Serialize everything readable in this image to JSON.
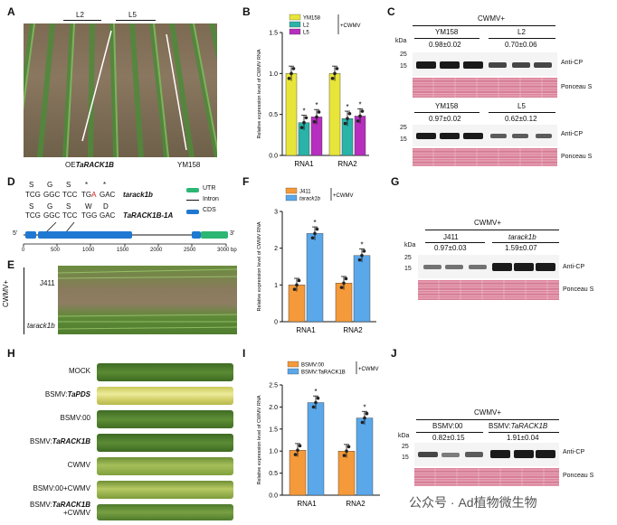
{
  "panels": {
    "A": {
      "letter": "A",
      "labels_top": [
        "L2",
        "L5"
      ],
      "label_left_pre": "OE",
      "label_left_gene": "TaRACK1B",
      "label_right": "YM158"
    },
    "B": {
      "letter": "B",
      "legend": [
        "YM158",
        "L2",
        "L5"
      ],
      "legend_suffix": "CWMV",
      "ylabel": "Relative expression level of CWMV RNA",
      "chart_data": {
        "type": "bar",
        "categories": [
          "RNA1",
          "RNA2"
        ],
        "series": [
          {
            "name": "YM158",
            "values": [
              1.0,
              1.0
            ],
            "color": "#e8e53a"
          },
          {
            "name": "L2",
            "values": [
              0.4,
              0.45
            ],
            "color": "#2ab3a8"
          },
          {
            "name": "L5",
            "values": [
              0.47,
              0.48
            ],
            "color": "#b72fbf"
          }
        ],
        "ylim": [
          0,
          1.5
        ],
        "yticks": [
          "0.0",
          "0.5",
          "1.0",
          "1.5"
        ],
        "stars": [
          "",
          "*",
          "*",
          "",
          "*",
          "*"
        ]
      }
    },
    "C": {
      "letter": "C",
      "header": "CWMV+",
      "kda": "kDa",
      "m25": "25",
      "m15": "15",
      "top_labels": [
        "YM158",
        "L2"
      ],
      "top_values": [
        "0.98±0.02",
        "0.70±0.06"
      ],
      "bot_labels": [
        "YM158",
        "L5"
      ],
      "bot_values": [
        "0.97±0.02",
        "0.62±0.12"
      ],
      "anti": "Anti-CP",
      "ponc": "Ponceau S"
    },
    "D": {
      "letter": "D",
      "wt_aa": [
        "S",
        "G",
        "S",
        "*",
        "*"
      ],
      "wt_seq": [
        "TCG",
        "GGC",
        "TCC",
        "TGA",
        "GAC"
      ],
      "wt_red": "A",
      "mut_name": "tarack1b",
      "ref_aa": [
        "S",
        "G",
        "S",
        "W",
        "D"
      ],
      "ref_seq": [
        "TCG",
        "GGC",
        "TCC",
        "TGG",
        "GAC"
      ],
      "ref_name": "TaRACK1B-1A",
      "legend": [
        "UTR",
        "Intron",
        "CDS"
      ],
      "axis": [
        "0",
        "500",
        "1000",
        "1500",
        "2000",
        "2500",
        "3000 bp"
      ],
      "five": "5'",
      "three": "3'"
    },
    "E": {
      "letter": "E",
      "side": "CWMV+",
      "top": "J411",
      "bottom": "tarack1b"
    },
    "F": {
      "letter": "F",
      "legend": [
        "J411",
        "tarack1b"
      ],
      "legend_suffix": "CWMV",
      "ylabel": "Relative expression level of CWMV RNA",
      "chart_data": {
        "type": "bar",
        "categories": [
          "RNA1",
          "RNA2"
        ],
        "series": [
          {
            "name": "J411",
            "values": [
              1.0,
              1.05
            ],
            "color": "#f59a3a"
          },
          {
            "name": "tarack1b",
            "values": [
              2.4,
              1.8
            ],
            "color": "#5aa8ea"
          }
        ],
        "ylim": [
          0,
          3
        ],
        "yticks": [
          "0",
          "1",
          "2",
          "3"
        ],
        "stars": [
          "",
          "*",
          "",
          "*"
        ]
      }
    },
    "G": {
      "letter": "G",
      "header": "CWMV+",
      "kda": "kDa",
      "m25": "25",
      "m15": "15",
      "labels": [
        "J411",
        "tarack1b"
      ],
      "values": [
        "0.97±0.03",
        "1.59±0.07"
      ],
      "anti": "Anti-CP",
      "ponc": "Ponceau S"
    },
    "H": {
      "letter": "H",
      "rows": [
        "MOCK",
        "BSMV:TaPDS",
        "BSMV:00",
        "BSMV:TaRACK1B",
        "CWMV",
        "BSMV:00+CWMV",
        "BSMV:TaRACK1B\n+CWMV"
      ],
      "rows_plain": [
        "MOCK",
        "BSMV:",
        "BSMV:00",
        "BSMV:",
        "CWMV",
        "BSMV:00+CWMV",
        "BSMV:"
      ],
      "rows_it": [
        "",
        "TaPDS",
        "",
        "TaRACK1B",
        "",
        "",
        "TaRACK1B"
      ],
      "rows_tail": [
        "",
        "",
        "",
        "",
        "",
        "",
        "+CWMV"
      ]
    },
    "I": {
      "letter": "I",
      "legend": [
        "BSMV:00",
        "BSMV:TaRACK1B"
      ],
      "legend_suffix": "CWMV",
      "ylabel": "Relative expression level of CWMV RNA",
      "chart_data": {
        "type": "bar",
        "categories": [
          "RNA1",
          "RNA2"
        ],
        "series": [
          {
            "name": "BSMV:00",
            "values": [
              1.02,
              1.0
            ],
            "color": "#f59a3a"
          },
          {
            "name": "BSMV:TaRACK1B",
            "values": [
              2.1,
              1.75
            ],
            "color": "#5aa8ea"
          }
        ],
        "ylim": [
          0,
          2.5
        ],
        "yticks": [
          "0.0",
          "0.5",
          "1.0",
          "1.5",
          "2.0",
          "2.5"
        ],
        "stars": [
          "",
          "*",
          "",
          "*"
        ]
      }
    },
    "J": {
      "letter": "J",
      "header": "CWMV+",
      "kda": "kDa",
      "m25": "25",
      "m15": "15",
      "labels": [
        "BSMV:00",
        "BSMV:TaRACK1B"
      ],
      "values": [
        "0.82±0.15",
        "1.91±0.04"
      ],
      "anti": "Anti-CP",
      "ponc": "Ponceau S"
    }
  },
  "watermark": "公众号 · Ad植物微生物"
}
